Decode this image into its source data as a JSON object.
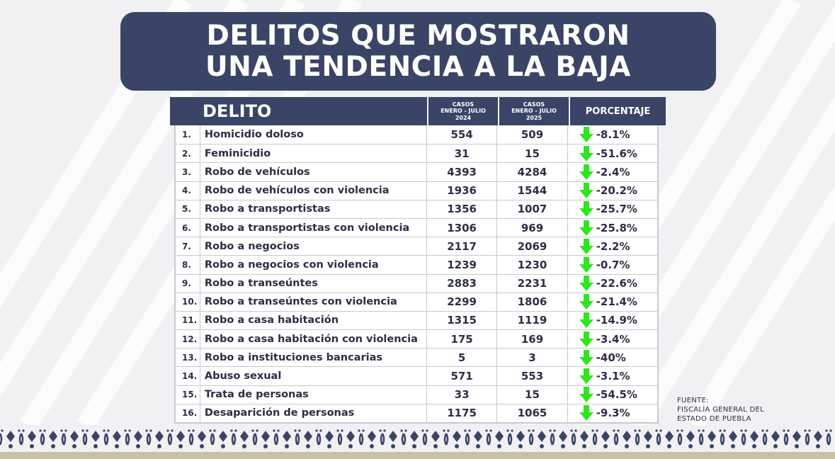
{
  "title": {
    "line1": "DELITOS QUE MOSTRARON",
    "line2": "UNA TENDENCIA A LA BAJA"
  },
  "table": {
    "headers": {
      "delito": "DELITO",
      "col2024": [
        "CASOS",
        "ENERO - JULIO",
        "2024"
      ],
      "col2025": [
        "CASOS",
        "ENERO - JULIO",
        "2025"
      ],
      "porcentaje": "PORCENTAJE"
    },
    "rows": [
      {
        "num": "1.",
        "name": "Homicidio doloso",
        "v2024": "554",
        "v2025": "509",
        "pct": "-8.1%"
      },
      {
        "num": "2.",
        "name": "Feminicidio",
        "v2024": "31",
        "v2025": "15",
        "pct": "-51.6%"
      },
      {
        "num": "3.",
        "name": "Robo de vehículos",
        "v2024": "4393",
        "v2025": "4284",
        "pct": "-2.4%"
      },
      {
        "num": "4.",
        "name": "Robo de vehículos con violencia",
        "v2024": "1936",
        "v2025": "1544",
        "pct": "-20.2%"
      },
      {
        "num": "5.",
        "name": "Robo a transportistas",
        "v2024": "1356",
        "v2025": "1007",
        "pct": "-25.7%"
      },
      {
        "num": "6.",
        "name": "Robo a transportistas con violencia",
        "v2024": "1306",
        "v2025": "969",
        "pct": "-25.8%"
      },
      {
        "num": "7.",
        "name": "Robo a negocios",
        "v2024": "2117",
        "v2025": "2069",
        "pct": "-2.2%"
      },
      {
        "num": "8.",
        "name": "Robo a negocios con violencia",
        "v2024": "1239",
        "v2025": "1230",
        "pct": "-0.7%"
      },
      {
        "num": "9.",
        "name": "Robo a transeúntes",
        "v2024": "2883",
        "v2025": "2231",
        "pct": "-22.6%"
      },
      {
        "num": "10.",
        "name": "Robo a transeúntes con violencia",
        "v2024": "2299",
        "v2025": "1806",
        "pct": "-21.4%"
      },
      {
        "num": "11.",
        "name": "Robo a casa habitación",
        "v2024": "1315",
        "v2025": "1119",
        "pct": "-14.9%"
      },
      {
        "num": "12.",
        "name": "Robo a casa habitación con violencia",
        "v2024": "175",
        "v2025": "169",
        "pct": "-3.4%"
      },
      {
        "num": "13.",
        "name": "Robo a instituciones bancarias",
        "v2024": "5",
        "v2025": "3",
        "pct": "-40%"
      },
      {
        "num": "14.",
        "name": "Abuso sexual",
        "v2024": "571",
        "v2025": "553",
        "pct": "-3.1%"
      },
      {
        "num": "15.",
        "name": "Trata de personas",
        "v2024": "33",
        "v2025": "15",
        "pct": "-54.5%"
      },
      {
        "num": "16.",
        "name": "Desaparición de personas",
        "v2024": "1175",
        "v2025": "1065",
        "pct": "-9.3%"
      }
    ]
  },
  "source": {
    "label": "FUENTE:",
    "line1": "FISCALÍA GENERAL DEL",
    "line2": "ESTADO DE PUEBLA"
  },
  "colors": {
    "navy": "#3a4466",
    "arrow_green": "#2ee620",
    "background": "#f1f1f4",
    "border_ornament": "#3a4466"
  },
  "icons": {
    "trend": "down-arrow-icon"
  }
}
